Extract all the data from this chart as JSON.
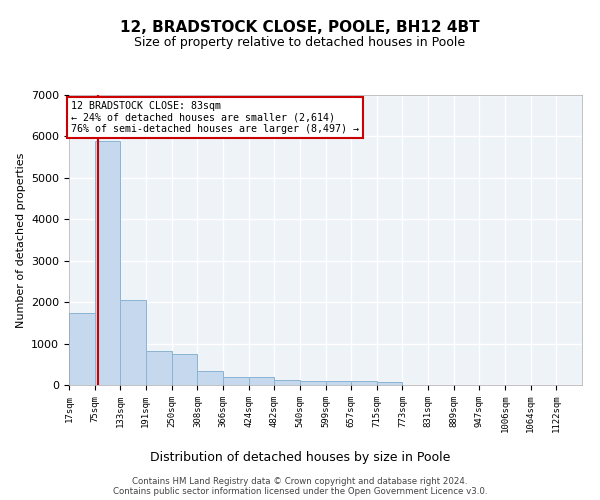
{
  "title_line1": "12, BRADSTOCK CLOSE, POOLE, BH12 4BT",
  "title_line2": "Size of property relative to detached houses in Poole",
  "xlabel": "Distribution of detached houses by size in Poole",
  "ylabel": "Number of detached properties",
  "bar_edges": [
    17,
    75,
    133,
    191,
    250,
    308,
    366,
    424,
    482,
    540,
    599,
    657,
    715,
    773,
    831,
    889,
    947,
    1006,
    1064,
    1122,
    1180
  ],
  "bar_heights": [
    1750,
    5900,
    2050,
    820,
    750,
    350,
    190,
    190,
    110,
    95,
    95,
    90,
    70,
    10,
    5,
    5,
    5,
    3,
    2,
    1
  ],
  "bar_color": "#c5d8ed",
  "bar_edgecolor": "#8ab4d4",
  "property_line_x": 83,
  "annotation_text_line1": "12 BRADSTOCK CLOSE: 83sqm",
  "annotation_text_line2": "← 24% of detached houses are smaller (2,614)",
  "annotation_text_line3": "76% of semi-detached houses are larger (8,497) →",
  "annotation_box_color": "#ffffff",
  "annotation_box_edgecolor": "#cc0000",
  "property_line_color": "#cc0000",
  "ylim": [
    0,
    7000
  ],
  "yticks": [
    0,
    1000,
    2000,
    3000,
    4000,
    5000,
    6000,
    7000
  ],
  "footer_line1": "Contains HM Land Registry data © Crown copyright and database right 2024.",
  "footer_line2": "Contains public sector information licensed under the Open Government Licence v3.0.",
  "background_color": "#ffffff",
  "plot_background_color": "#eef3f8",
  "grid_color": "#ffffff"
}
